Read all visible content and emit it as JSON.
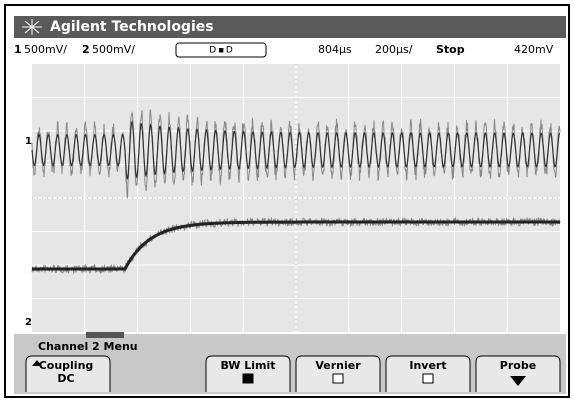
{
  "header": {
    "title": "Agilent Technologies"
  },
  "status": {
    "ch1": "1",
    "ch1_scale": "500mV/",
    "ch2": "2",
    "ch2_scale": "500mV/",
    "trigger_mode": "D ▪ D",
    "time_delay": "804µs",
    "time_scale": "200µs/",
    "run_state": "Stop",
    "trigger_level": "420mV"
  },
  "markers": {
    "ch1": "1",
    "ch2": "2"
  },
  "menu": {
    "title": "Channel 2 Menu",
    "softkeys": [
      {
        "label": "Coupling",
        "value": "DC"
      },
      {
        "label": "BW Limit"
      },
      {
        "label": "Vernier"
      },
      {
        "label": "Invert"
      },
      {
        "label": "Probe"
      }
    ]
  }
}
